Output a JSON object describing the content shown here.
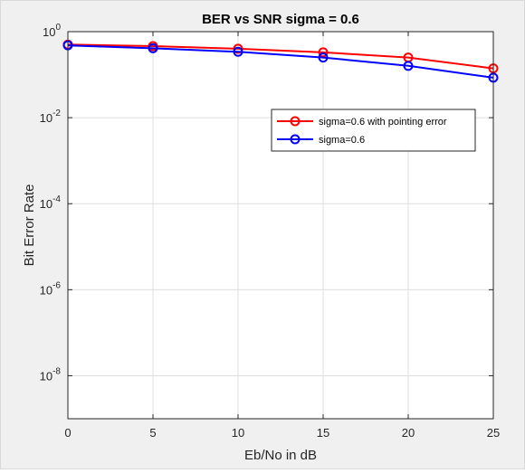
{
  "chart_data": {
    "type": "line",
    "title": "BER vs SNR sigma = 0.6",
    "xlabel": "Eb/No in dB",
    "ylabel": "Bit Error Rate",
    "xlim": [
      0,
      25
    ],
    "ylim": [
      1e-09,
      1
    ],
    "yscale": "log",
    "grid": true,
    "legend_position": "upper-right",
    "x": [
      0,
      5,
      10,
      15,
      20,
      25
    ],
    "x_ticks": [
      "0",
      "5",
      "10",
      "15",
      "20",
      "25"
    ],
    "y_tick_bases": [
      "10",
      "10",
      "10",
      "10",
      "10"
    ],
    "y_tick_exponents": [
      "0",
      "-2",
      "-4",
      "-6",
      "-8"
    ],
    "series": [
      {
        "name": "sigma=0.6 with pointing error",
        "color": "#ff0000",
        "marker": "circle",
        "values": [
          0.5,
          0.46,
          0.4,
          0.33,
          0.25,
          0.14
        ]
      },
      {
        "name": "sigma=0.6",
        "color": "#0000ff",
        "marker": "circle",
        "values": [
          0.48,
          0.41,
          0.34,
          0.25,
          0.16,
          0.085
        ]
      }
    ]
  }
}
